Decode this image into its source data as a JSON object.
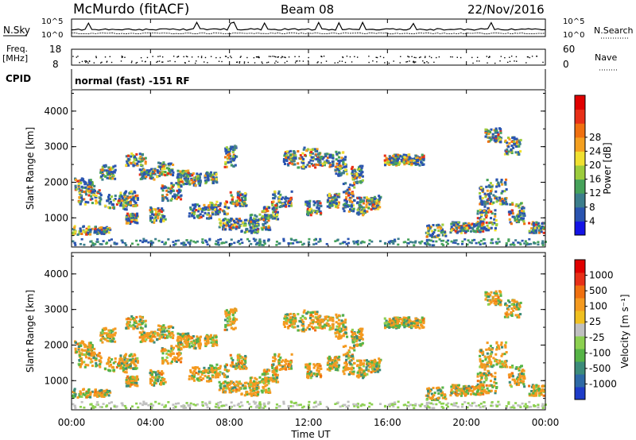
{
  "header": {
    "station": "McMurdo (fitACF)",
    "beam": "Beam 08",
    "date": "22/Nov/2016"
  },
  "strips": {
    "nsky_label": "N.Sky",
    "nsky_ticks": [
      "10^5",
      "10^0"
    ],
    "nsearch_label": "N.Search",
    "nsearch_ticks": [
      "10^5",
      "10^0"
    ],
    "freq_label": "Freq.",
    "freq_unit": "[MHz]",
    "freq_ticks": [
      "18",
      "8"
    ],
    "nave_label": "Nave",
    "nave_ticks": [
      "60",
      "0"
    ],
    "cpid_label": "CPID",
    "cpid_text": "normal (fast) -151 RF"
  },
  "chart_data": [
    {
      "type": "heatmap",
      "name": "power-panel",
      "ylabel": "Slant Range [km]",
      "ylim": [
        180,
        4600
      ],
      "yticks": [
        "1000",
        "2000",
        "3000",
        "4000"
      ],
      "xlim": [
        0,
        24
      ],
      "colorbar_label": "Power [dB]",
      "colorbar_ticks": [
        "4",
        "8",
        "12",
        "16",
        "20",
        "24",
        "28"
      ],
      "colorbar_colors": [
        "#1414e6",
        "#2a54b0",
        "#3c7e8c",
        "#46a25a",
        "#9ccc3c",
        "#f0e030",
        "#f4a020",
        "#f07010",
        "#e83018",
        "#e00000"
      ]
    },
    {
      "type": "heatmap",
      "name": "velocity-panel",
      "ylabel": "Slant Range [km]",
      "ylim": [
        180,
        4600
      ],
      "yticks": [
        "1000",
        "2000",
        "3000",
        "4000"
      ],
      "xlim": [
        0,
        24
      ],
      "xticks": [
        "00:00",
        "04:00",
        "08:00",
        "12:00",
        "16:00",
        "20:00",
        "00:00"
      ],
      "xlabel": "Time UT",
      "colorbar_label": "Velocity [m s⁻¹]",
      "colorbar_ticks": [
        "1000",
        "500",
        "100",
        "25",
        "-25",
        "-100",
        "-500",
        "-1000"
      ],
      "colorbar_colors": [
        "#1e3cc8",
        "#2e6aa6",
        "#3c8c7a",
        "#56b446",
        "#8cd050",
        "#c0c0c0",
        "#f0c020",
        "#f49a20",
        "#f07010",
        "#e83018",
        "#e00000"
      ]
    }
  ]
}
